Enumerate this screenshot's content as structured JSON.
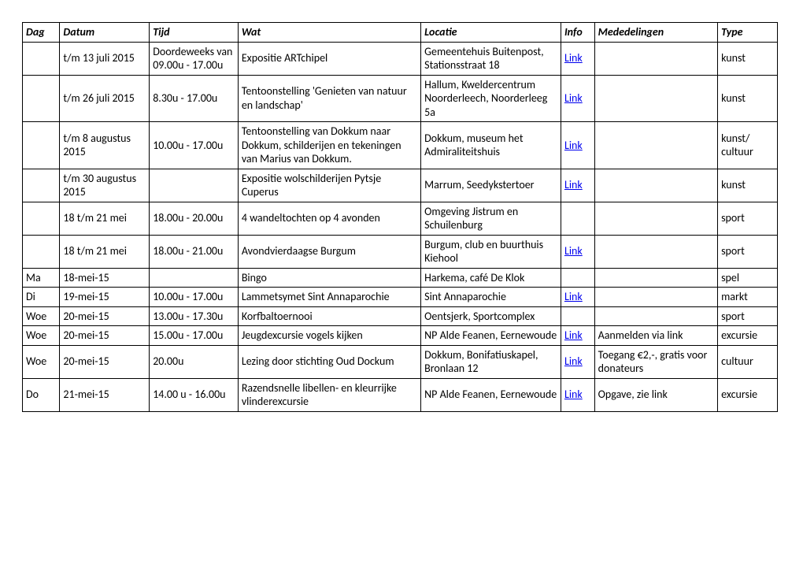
{
  "headers": {
    "dag": "Dag",
    "datum": "Datum",
    "tijd": "Tijd",
    "wat": "Wat",
    "locatie": "Locatie",
    "info": "Info",
    "mededelingen": "Mededelingen",
    "type": "Type"
  },
  "link_text": "Link",
  "rows": [
    {
      "dag": "",
      "datum": "t/m 13 juli 2015",
      "tijd": "Doordeweeks van 09.00u - 17.00u",
      "wat": "Expositie ARTchipel",
      "locatie": "Gemeentehuis Buitenpost, Stationsstraat 18",
      "info": true,
      "med": "",
      "type": "kunst"
    },
    {
      "dag": "",
      "datum": "t/m 26 juli 2015",
      "tijd": "8.30u - 17.00u",
      "wat": "Tentoonstelling 'Genieten van natuur en landschap'",
      "locatie": "Hallum, Kweldercentrum Noorderleech, Noorderleeg 5a",
      "info": true,
      "med": "",
      "type": "kunst"
    },
    {
      "dag": "",
      "datum": "t/m 8 augustus 2015",
      "tijd": "10.00u - 17.00u",
      "wat": "Tentoonstelling van Dokkum naar Dokkum, schilderijen en tekeningen van Marius van Dokkum.",
      "locatie": "Dokkum, museum het Admiraliteitshuis",
      "info": true,
      "med": "",
      "type": "kunst/ cultuur"
    },
    {
      "dag": "",
      "datum": "t/m 30 augustus 2015",
      "tijd": "",
      "wat": "Expositie wolschilderijen Pytsje Cuperus",
      "locatie": "Marrum, Seedykstertoer",
      "info": true,
      "med": "",
      "type": "kunst"
    },
    {
      "dag": "",
      "datum": "18 t/m 21 mei",
      "tijd": "18.00u - 20.00u",
      "wat": "4 wandeltochten op 4 avonden",
      "locatie": "Omgeving Jistrum en Schuilenburg",
      "info": false,
      "med": "",
      "type": "sport"
    },
    {
      "dag": "",
      "datum": "18 t/m 21 mei",
      "tijd": "18.00u - 21.00u",
      "wat": "Avondvierdaagse Burgum",
      "locatie": "Burgum, club en buurthuis Kiehool",
      "info": true,
      "med": "",
      "type": "sport"
    },
    {
      "dag": "Ma",
      "datum": "18-mei-15",
      "tijd": "",
      "wat": "Bingo",
      "locatie": "Harkema, café De Klok",
      "info": false,
      "med": "",
      "type": "spel"
    },
    {
      "dag": "Di",
      "datum": "19-mei-15",
      "tijd": "10.00u - 17.00u",
      "wat": "Lammetsymet Sint Annaparochie",
      "locatie": "Sint Annaparochie",
      "info": true,
      "med": "",
      "type": "markt"
    },
    {
      "dag": "Woe",
      "datum": "20-mei-15",
      "tijd": "13.00u - 17.30u",
      "wat": "Korfbaltoernooi",
      "locatie": "Oentsjerk, Sportcomplex",
      "info": false,
      "med": "",
      "type": "sport"
    },
    {
      "dag": "Woe",
      "datum": "20-mei-15",
      "tijd": "15.00u - 17.00u",
      "wat": "Jeugdexcursie vogels kijken",
      "locatie": "NP Alde Feanen, Eernewoude",
      "info": true,
      "med": "Aanmelden via link",
      "type": "excursie"
    },
    {
      "dag": "Woe",
      "datum": "20-mei-15",
      "tijd": "20.00u",
      "wat": "Lezing door stichting Oud Dockum",
      "locatie": "Dokkum, Bonifatiuskapel, Bronlaan 12",
      "info": true,
      "med": "Toegang €2,-, gratis voor donateurs",
      "type": "cultuur"
    },
    {
      "dag": "Do",
      "datum": "21-mei-15",
      "tijd": "14.00 u - 16.00u",
      "wat": "Razendsnelle libellen- en kleurrijke vlinderexcursie",
      "locatie": "NP Alde Feanen, Eernewoude",
      "info": true,
      "med": "Opgave, zie link",
      "type": "excursie"
    }
  ]
}
